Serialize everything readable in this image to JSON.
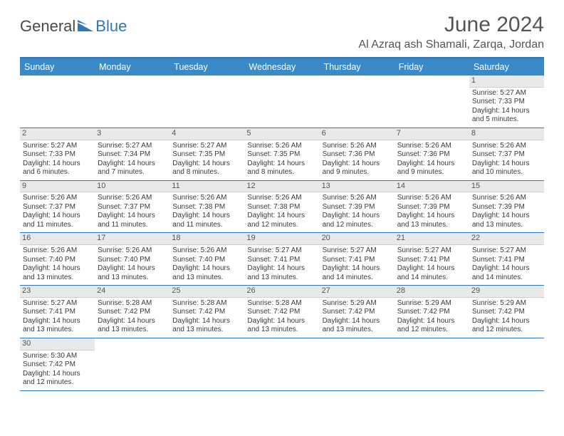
{
  "brand": {
    "part1": "General",
    "part2": "Blue"
  },
  "title": "June 2024",
  "location": "Al Azraq ash Shamali, Zarqa, Jordan",
  "colors": {
    "header_bg": "#3a8ac8",
    "header_border": "#2e77b8",
    "daynum_bg": "#e9e9e9",
    "text": "#3a3a3a",
    "brand_blue": "#2e77b8"
  },
  "day_names": [
    "Sunday",
    "Monday",
    "Tuesday",
    "Wednesday",
    "Thursday",
    "Friday",
    "Saturday"
  ],
  "weeks": [
    [
      null,
      null,
      null,
      null,
      null,
      null,
      {
        "n": "1",
        "sr": "Sunrise: 5:27 AM",
        "ss": "Sunset: 7:33 PM",
        "dl1": "Daylight: 14 hours",
        "dl2": "and 5 minutes."
      }
    ],
    [
      {
        "n": "2",
        "sr": "Sunrise: 5:27 AM",
        "ss": "Sunset: 7:33 PM",
        "dl1": "Daylight: 14 hours",
        "dl2": "and 6 minutes."
      },
      {
        "n": "3",
        "sr": "Sunrise: 5:27 AM",
        "ss": "Sunset: 7:34 PM",
        "dl1": "Daylight: 14 hours",
        "dl2": "and 7 minutes."
      },
      {
        "n": "4",
        "sr": "Sunrise: 5:27 AM",
        "ss": "Sunset: 7:35 PM",
        "dl1": "Daylight: 14 hours",
        "dl2": "and 8 minutes."
      },
      {
        "n": "5",
        "sr": "Sunrise: 5:26 AM",
        "ss": "Sunset: 7:35 PM",
        "dl1": "Daylight: 14 hours",
        "dl2": "and 8 minutes."
      },
      {
        "n": "6",
        "sr": "Sunrise: 5:26 AM",
        "ss": "Sunset: 7:36 PM",
        "dl1": "Daylight: 14 hours",
        "dl2": "and 9 minutes."
      },
      {
        "n": "7",
        "sr": "Sunrise: 5:26 AM",
        "ss": "Sunset: 7:36 PM",
        "dl1": "Daylight: 14 hours",
        "dl2": "and 9 minutes."
      },
      {
        "n": "8",
        "sr": "Sunrise: 5:26 AM",
        "ss": "Sunset: 7:37 PM",
        "dl1": "Daylight: 14 hours",
        "dl2": "and 10 minutes."
      }
    ],
    [
      {
        "n": "9",
        "sr": "Sunrise: 5:26 AM",
        "ss": "Sunset: 7:37 PM",
        "dl1": "Daylight: 14 hours",
        "dl2": "and 11 minutes."
      },
      {
        "n": "10",
        "sr": "Sunrise: 5:26 AM",
        "ss": "Sunset: 7:37 PM",
        "dl1": "Daylight: 14 hours",
        "dl2": "and 11 minutes."
      },
      {
        "n": "11",
        "sr": "Sunrise: 5:26 AM",
        "ss": "Sunset: 7:38 PM",
        "dl1": "Daylight: 14 hours",
        "dl2": "and 11 minutes."
      },
      {
        "n": "12",
        "sr": "Sunrise: 5:26 AM",
        "ss": "Sunset: 7:38 PM",
        "dl1": "Daylight: 14 hours",
        "dl2": "and 12 minutes."
      },
      {
        "n": "13",
        "sr": "Sunrise: 5:26 AM",
        "ss": "Sunset: 7:39 PM",
        "dl1": "Daylight: 14 hours",
        "dl2": "and 12 minutes."
      },
      {
        "n": "14",
        "sr": "Sunrise: 5:26 AM",
        "ss": "Sunset: 7:39 PM",
        "dl1": "Daylight: 14 hours",
        "dl2": "and 13 minutes."
      },
      {
        "n": "15",
        "sr": "Sunrise: 5:26 AM",
        "ss": "Sunset: 7:39 PM",
        "dl1": "Daylight: 14 hours",
        "dl2": "and 13 minutes."
      }
    ],
    [
      {
        "n": "16",
        "sr": "Sunrise: 5:26 AM",
        "ss": "Sunset: 7:40 PM",
        "dl1": "Daylight: 14 hours",
        "dl2": "and 13 minutes."
      },
      {
        "n": "17",
        "sr": "Sunrise: 5:26 AM",
        "ss": "Sunset: 7:40 PM",
        "dl1": "Daylight: 14 hours",
        "dl2": "and 13 minutes."
      },
      {
        "n": "18",
        "sr": "Sunrise: 5:26 AM",
        "ss": "Sunset: 7:40 PM",
        "dl1": "Daylight: 14 hours",
        "dl2": "and 13 minutes."
      },
      {
        "n": "19",
        "sr": "Sunrise: 5:27 AM",
        "ss": "Sunset: 7:41 PM",
        "dl1": "Daylight: 14 hours",
        "dl2": "and 13 minutes."
      },
      {
        "n": "20",
        "sr": "Sunrise: 5:27 AM",
        "ss": "Sunset: 7:41 PM",
        "dl1": "Daylight: 14 hours",
        "dl2": "and 14 minutes."
      },
      {
        "n": "21",
        "sr": "Sunrise: 5:27 AM",
        "ss": "Sunset: 7:41 PM",
        "dl1": "Daylight: 14 hours",
        "dl2": "and 14 minutes."
      },
      {
        "n": "22",
        "sr": "Sunrise: 5:27 AM",
        "ss": "Sunset: 7:41 PM",
        "dl1": "Daylight: 14 hours",
        "dl2": "and 14 minutes."
      }
    ],
    [
      {
        "n": "23",
        "sr": "Sunrise: 5:27 AM",
        "ss": "Sunset: 7:41 PM",
        "dl1": "Daylight: 14 hours",
        "dl2": "and 13 minutes."
      },
      {
        "n": "24",
        "sr": "Sunrise: 5:28 AM",
        "ss": "Sunset: 7:42 PM",
        "dl1": "Daylight: 14 hours",
        "dl2": "and 13 minutes."
      },
      {
        "n": "25",
        "sr": "Sunrise: 5:28 AM",
        "ss": "Sunset: 7:42 PM",
        "dl1": "Daylight: 14 hours",
        "dl2": "and 13 minutes."
      },
      {
        "n": "26",
        "sr": "Sunrise: 5:28 AM",
        "ss": "Sunset: 7:42 PM",
        "dl1": "Daylight: 14 hours",
        "dl2": "and 13 minutes."
      },
      {
        "n": "27",
        "sr": "Sunrise: 5:29 AM",
        "ss": "Sunset: 7:42 PM",
        "dl1": "Daylight: 14 hours",
        "dl2": "and 13 minutes."
      },
      {
        "n": "28",
        "sr": "Sunrise: 5:29 AM",
        "ss": "Sunset: 7:42 PM",
        "dl1": "Daylight: 14 hours",
        "dl2": "and 12 minutes."
      },
      {
        "n": "29",
        "sr": "Sunrise: 5:29 AM",
        "ss": "Sunset: 7:42 PM",
        "dl1": "Daylight: 14 hours",
        "dl2": "and 12 minutes."
      }
    ],
    [
      {
        "n": "30",
        "sr": "Sunrise: 5:30 AM",
        "ss": "Sunset: 7:42 PM",
        "dl1": "Daylight: 14 hours",
        "dl2": "and 12 minutes."
      },
      null,
      null,
      null,
      null,
      null,
      null
    ]
  ]
}
